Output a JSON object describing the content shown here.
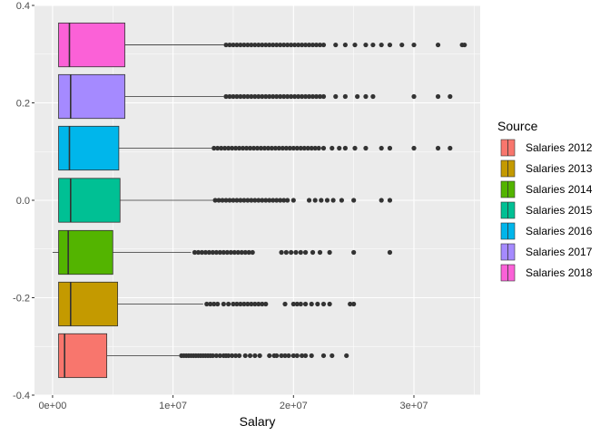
{
  "chart_data": {
    "type": "boxplot",
    "orientation": "horizontal",
    "title": "",
    "xlabel": "Salary",
    "ylabel": "",
    "xlim": [
      -1500000,
      35500000
    ],
    "ylim": [
      -0.4,
      0.4
    ],
    "x_ticks": [
      0,
      10000000,
      20000000,
      30000000
    ],
    "x_tick_labels": [
      "0e+00",
      "1e+07",
      "2e+07",
      "3e+07"
    ],
    "y_ticks": [
      -0.4,
      -0.2,
      0.0,
      0.2,
      0.4
    ],
    "y_tick_labels": [
      "-0.4",
      "-0.2",
      "0.0",
      "0.2",
      "0.4"
    ],
    "grid": true,
    "legend_title": "Source",
    "legend_position": "right",
    "box_width": 0.09,
    "series": [
      {
        "name": "Salaries 2012",
        "color": "#F8766D",
        "center": -0.319,
        "min": 500000,
        "q1": 500000,
        "median": 1000000,
        "q3": 4500000,
        "whisker_high": 10500000,
        "outliers": [
          10700000,
          10900000,
          11100000,
          11300000,
          11500000,
          11700000,
          11900000,
          12100000,
          12300000,
          12500000,
          12700000,
          12900000,
          13100000,
          13300000,
          13600000,
          13900000,
          14200000,
          14400000,
          14600000,
          14900000,
          15200000,
          15500000,
          16000000,
          16400000,
          16800000,
          17200000,
          18000000,
          18400000,
          18600000,
          19000000,
          19300000,
          19600000,
          20000000,
          20300000,
          20700000,
          21000000,
          21500000,
          22500000,
          23200000,
          24400000
        ]
      },
      {
        "name": "Salaries 2013",
        "color": "#C49A00",
        "center": -0.213,
        "min": 500000,
        "q1": 500000,
        "median": 1500000,
        "q3": 5400000,
        "whisker_high": 12500000,
        "outliers": [
          12800000,
          13100000,
          13400000,
          13700000,
          14200000,
          14600000,
          15000000,
          15300000,
          15600000,
          15900000,
          16200000,
          16500000,
          16800000,
          17100000,
          17400000,
          17700000,
          19300000,
          20000000,
          20300000,
          20600000,
          21000000,
          21500000,
          22000000,
          22500000,
          23000000,
          24700000,
          25000000
        ]
      },
      {
        "name": "Salaries 2014",
        "color": "#53B400",
        "center": -0.107,
        "min": 0,
        "q1": 500000,
        "median": 1300000,
        "q3": 5000000,
        "whisker_high": 11500000,
        "outliers": [
          11800000,
          12100000,
          12400000,
          12700000,
          13000000,
          13300000,
          13600000,
          13900000,
          14200000,
          14500000,
          14800000,
          15100000,
          15400000,
          15700000,
          16000000,
          16300000,
          16600000,
          19000000,
          19400000,
          19800000,
          20200000,
          20600000,
          21000000,
          21600000,
          22200000,
          23000000,
          25000000,
          28000000
        ]
      },
      {
        "name": "Salaries 2015",
        "color": "#00C094",
        "center": 0.0,
        "min": 500000,
        "q1": 500000,
        "median": 1500000,
        "q3": 5600000,
        "whisker_high": 13300000,
        "outliers": [
          13500000,
          13800000,
          14100000,
          14400000,
          14700000,
          15000000,
          15300000,
          15600000,
          15900000,
          16200000,
          16500000,
          16800000,
          17100000,
          17400000,
          17700000,
          18000000,
          18300000,
          18600000,
          18900000,
          19200000,
          19500000,
          20000000,
          21300000,
          21800000,
          22300000,
          22800000,
          23300000,
          24000000,
          25000000,
          27300000,
          28000000
        ]
      },
      {
        "name": "Salaries 2016",
        "color": "#00B6EB",
        "center": 0.107,
        "min": 500000,
        "q1": 500000,
        "median": 1400000,
        "q3": 5500000,
        "whisker_high": 13200000,
        "outliers": [
          13400000,
          13700000,
          14000000,
          14300000,
          14600000,
          14900000,
          15200000,
          15500000,
          15800000,
          16100000,
          16400000,
          16700000,
          17000000,
          17300000,
          17600000,
          17900000,
          18200000,
          18500000,
          18800000,
          19100000,
          19400000,
          19700000,
          20000000,
          20300000,
          20600000,
          20900000,
          21200000,
          21500000,
          21800000,
          22100000,
          22500000,
          23200000,
          23800000,
          24300000,
          25100000,
          26000000,
          27300000,
          28000000,
          30000000,
          32000000,
          33000000
        ]
      },
      {
        "name": "Salaries 2017",
        "color": "#A58AFF",
        "center": 0.213,
        "min": 500000,
        "q1": 500000,
        "median": 1500000,
        "q3": 6000000,
        "whisker_high": 14200000,
        "outliers": [
          14400000,
          14700000,
          15000000,
          15300000,
          15600000,
          15900000,
          16200000,
          16500000,
          16800000,
          17100000,
          17400000,
          17700000,
          18000000,
          18300000,
          18600000,
          18900000,
          19200000,
          19500000,
          19800000,
          20100000,
          20400000,
          20700000,
          21000000,
          21300000,
          21600000,
          21900000,
          22200000,
          22500000,
          23500000,
          24300000,
          25300000,
          26000000,
          26600000,
          30000000,
          32000000,
          33000000
        ]
      },
      {
        "name": "Salaries 2018",
        "color": "#FB61D7",
        "center": 0.319,
        "min": 500000,
        "q1": 500000,
        "median": 1400000,
        "q3": 6000000,
        "whisker_high": 14200000,
        "outliers": [
          14400000,
          14700000,
          15000000,
          15300000,
          15600000,
          15900000,
          16200000,
          16500000,
          16800000,
          17100000,
          17400000,
          17700000,
          18000000,
          18300000,
          18600000,
          18900000,
          19200000,
          19500000,
          19800000,
          20100000,
          20400000,
          20700000,
          21000000,
          21300000,
          21600000,
          21900000,
          22200000,
          22500000,
          23500000,
          24300000,
          25100000,
          26000000,
          26600000,
          27300000,
          28000000,
          29000000,
          30000000,
          32000000,
          34000000,
          34200000
        ]
      }
    ]
  }
}
